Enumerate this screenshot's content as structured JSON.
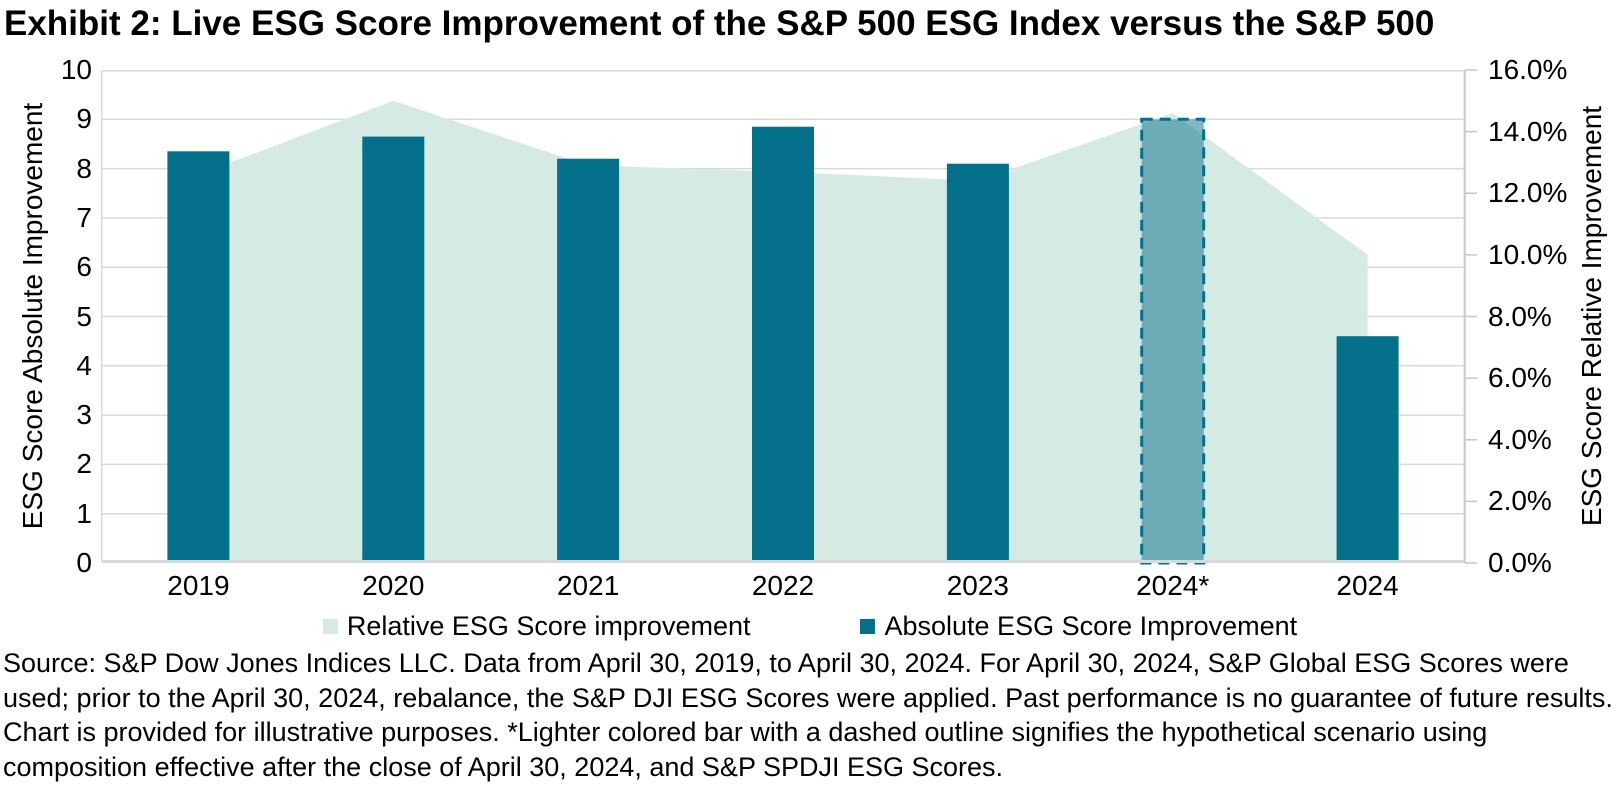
{
  "title": "Exhibit 2: Live ESG Score Improvement of the S&P 500 ESG Index versus the S&P 500",
  "chart_data": {
    "type": "combo",
    "categories": [
      "2019",
      "2020",
      "2021",
      "2022",
      "2023",
      "2024*",
      "2024"
    ],
    "series": [
      {
        "name": "Relative ESG Score improvement",
        "type": "area",
        "axis": "right",
        "unit": "percent",
        "values": [
          12.6,
          15.0,
          12.9,
          12.7,
          12.4,
          14.6,
          10.0
        ]
      },
      {
        "name": "Absolute ESG Score Improvement",
        "type": "bar",
        "axis": "left",
        "values": [
          8.35,
          8.65,
          8.2,
          8.85,
          8.1,
          9.0,
          4.6
        ]
      }
    ],
    "hypothetical_category_index": 5,
    "hypothetical_note": "Lighter colored bar with a dashed outline signifies the hypothetical scenario",
    "left_axis": {
      "label": "ESG Score Absolute Improvement",
      "min": 0,
      "max": 10,
      "step": 1,
      "tick_labels": [
        "0",
        "1",
        "2",
        "3",
        "4",
        "5",
        "6",
        "7",
        "8",
        "9",
        "10"
      ]
    },
    "right_axis": {
      "label": "ESG Score Relative Improvement",
      "min": 0,
      "max": 16,
      "step": 2,
      "tick_labels": [
        "0.0%",
        "2.0%",
        "4.0%",
        "6.0%",
        "8.0%",
        "10.0%",
        "12.0%",
        "14.0%",
        "16.0%"
      ]
    },
    "grid": true,
    "legend_position": "bottom"
  },
  "legend": [
    {
      "label": "Relative ESG Score improvement",
      "swatch": "#d5eae2"
    },
    {
      "label": "Absolute ESG Score Improvement",
      "swatch": "#04708c"
    }
  ],
  "source_note": "Source: S&P Dow Jones Indices LLC. Data from April 30, 2019, to April 30, 2024. For April 30, 2024, S&P Global ESG Scores were used; prior to the April 30, 2024, rebalance, the S&P DJI ESG Scores were applied. Past performance is no guarantee of future results.  Chart is provided for illustrative purposes. *Lighter colored bar with a dashed outline signifies the hypothetical scenario using composition effective after the close of April 30, 2024, and S&P SPDJI ESG Scores.",
  "colors": {
    "bar": "#04708c",
    "area": "#d5eae2",
    "hypothetical_fill": "rgba(4,112,140,0.5)",
    "hypothetical_stroke": "#04708c",
    "gridline": "#d9d9d9",
    "axis_line": "#c6c6c6",
    "text": "#000000"
  }
}
